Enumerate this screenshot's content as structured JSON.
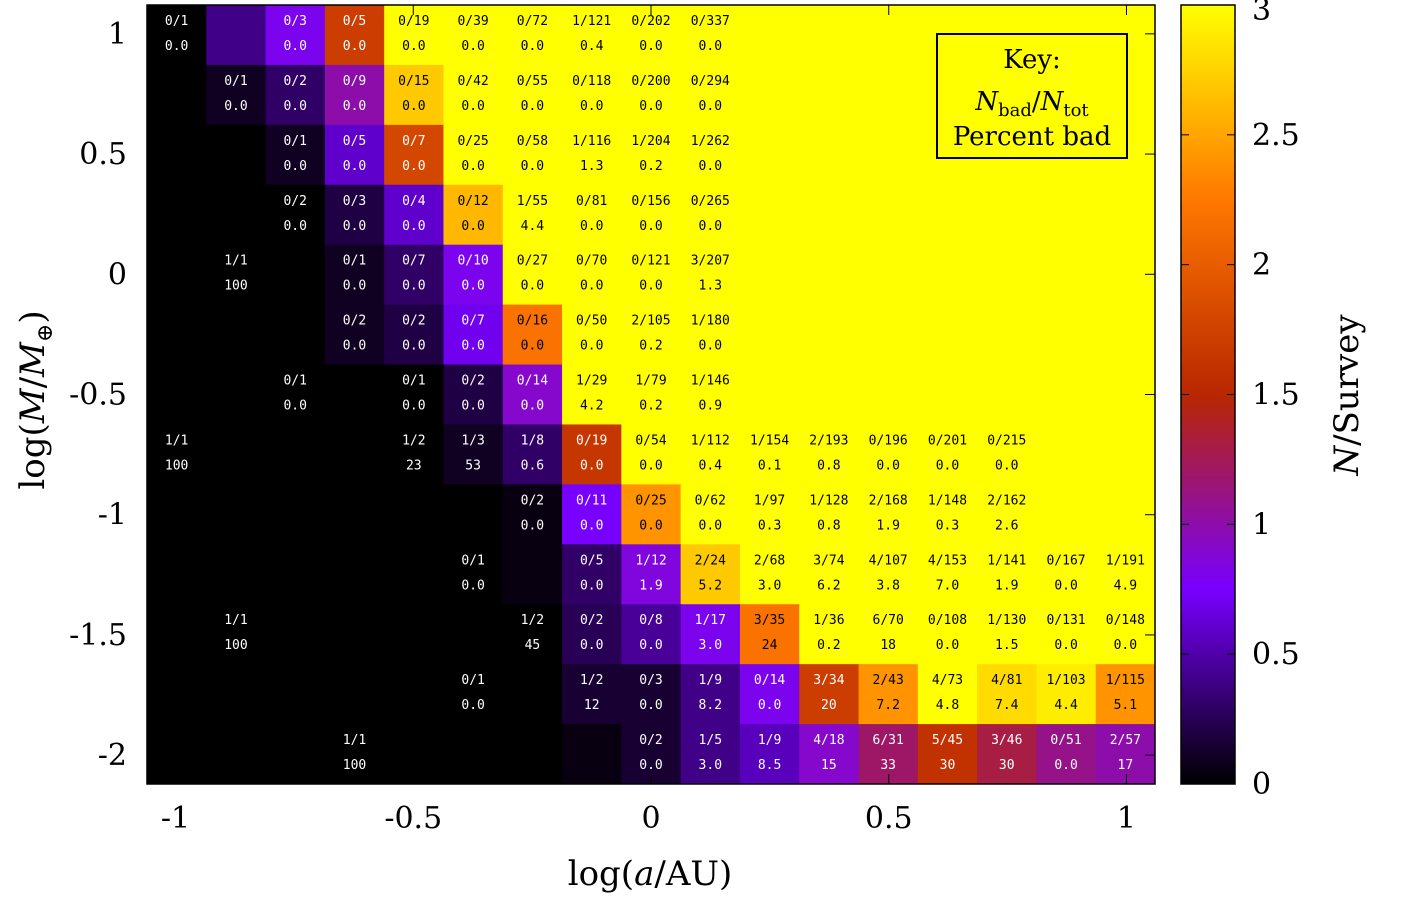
{
  "chart_data": {
    "type": "heatmap",
    "x_title": "log(a/AU)",
    "y_title": "log(M/M⊕)",
    "colorbar_title": "N/Survey",
    "x_range": [
      -1.06,
      1.06
    ],
    "y_range": [
      -2.12,
      1.12
    ],
    "x_ticks": [
      {
        "value": -1,
        "label": "-1"
      },
      {
        "value": -0.5,
        "label": "-0.5"
      },
      {
        "value": 0,
        "label": "0"
      },
      {
        "value": 0.5,
        "label": "0.5"
      },
      {
        "value": 1,
        "label": "1"
      }
    ],
    "y_ticks": [
      {
        "value": 1,
        "label": "1"
      },
      {
        "value": 0.5,
        "label": "0.5"
      },
      {
        "value": 0,
        "label": "0"
      },
      {
        "value": -0.5,
        "label": "-0.5"
      },
      {
        "value": -1,
        "label": "-1"
      },
      {
        "value": -1.5,
        "label": "-1.5"
      },
      {
        "value": -2,
        "label": "-2"
      }
    ],
    "colorbar_range": [
      0,
      3
    ],
    "colorbar_ticks": [
      {
        "value": 0,
        "label": "0"
      },
      {
        "value": 0.5,
        "label": "0.5"
      },
      {
        "value": 1,
        "label": "1"
      },
      {
        "value": 1.5,
        "label": "1.5"
      },
      {
        "value": 2,
        "label": "2"
      },
      {
        "value": 2.5,
        "label": "2.5"
      },
      {
        "value": 3,
        "label": "3"
      }
    ],
    "colormap": [
      "#000000",
      "#7800ff",
      "#b82700",
      "#ff7800",
      "#ffff00"
    ],
    "x_bins": [
      -1.0,
      -0.875,
      -0.75,
      -0.625,
      -0.5,
      -0.375,
      -0.25,
      -0.125,
      0.0,
      0.125,
      0.25,
      0.375,
      0.5,
      0.625,
      0.75,
      0.875,
      1.0
    ],
    "y_bins": [
      1.0,
      0.75,
      0.5,
      0.25,
      0.0,
      -0.25,
      -0.5,
      -0.75,
      -1.0,
      -1.25,
      -1.5,
      -1.75,
      -2.0
    ],
    "default_value": 3,
    "cells": [
      {
        "r": 0,
        "c": 0,
        "v": 0.0,
        "label": "0/1",
        "pct": "0.0"
      },
      {
        "r": 0,
        "c": 1,
        "v": 0.4
      },
      {
        "r": 0,
        "c": 2,
        "v": 0.8,
        "label": "0/3",
        "pct": "0.0"
      },
      {
        "r": 0,
        "c": 3,
        "v": 1.7,
        "label": "0/5",
        "pct": "0.0"
      },
      {
        "r": 0,
        "c": 4,
        "v": 3,
        "label": "0/19",
        "pct": "0.0"
      },
      {
        "r": 0,
        "c": 5,
        "v": 3,
        "label": "0/39",
        "pct": "0.0"
      },
      {
        "r": 0,
        "c": 6,
        "v": 3,
        "label": "0/72",
        "pct": "0.0"
      },
      {
        "r": 0,
        "c": 7,
        "v": 3,
        "label": "1/121",
        "pct": "0.4"
      },
      {
        "r": 0,
        "c": 8,
        "v": 3,
        "label": "0/202",
        "pct": "0.0"
      },
      {
        "r": 0,
        "c": 9,
        "v": 3,
        "label": "0/337",
        "pct": "0.0"
      },
      {
        "r": 1,
        "c": 0,
        "v": 0.0
      },
      {
        "r": 1,
        "c": 1,
        "v": 0.1,
        "label": "0/1",
        "pct": "0.0"
      },
      {
        "r": 1,
        "c": 2,
        "v": 0.3,
        "label": "0/2",
        "pct": "0.0"
      },
      {
        "r": 1,
        "c": 3,
        "v": 1.0,
        "label": "0/9",
        "pct": "0.0"
      },
      {
        "r": 1,
        "c": 4,
        "v": 2.7,
        "label": "0/15",
        "pct": "0.0"
      },
      {
        "r": 1,
        "c": 5,
        "v": 3,
        "label": "0/42",
        "pct": "0.0"
      },
      {
        "r": 1,
        "c": 6,
        "v": 3,
        "label": "0/55",
        "pct": "0.0"
      },
      {
        "r": 1,
        "c": 7,
        "v": 3,
        "label": "0/118",
        "pct": "0.0"
      },
      {
        "r": 1,
        "c": 8,
        "v": 3,
        "label": "0/200",
        "pct": "0.0"
      },
      {
        "r": 1,
        "c": 9,
        "v": 3,
        "label": "0/294",
        "pct": "0.0"
      },
      {
        "r": 2,
        "c": 0,
        "v": 0.0
      },
      {
        "r": 2,
        "c": 1,
        "v": 0.0
      },
      {
        "r": 2,
        "c": 2,
        "v": 0.1,
        "label": "0/1",
        "pct": "0.0"
      },
      {
        "r": 2,
        "c": 3,
        "v": 0.6,
        "label": "0/5",
        "pct": "0.0"
      },
      {
        "r": 2,
        "c": 4,
        "v": 1.8,
        "label": "0/7",
        "pct": "0.0"
      },
      {
        "r": 2,
        "c": 5,
        "v": 3,
        "label": "0/25",
        "pct": "0.0"
      },
      {
        "r": 2,
        "c": 6,
        "v": 3,
        "label": "0/58",
        "pct": "0.0"
      },
      {
        "r": 2,
        "c": 7,
        "v": 3,
        "label": "1/116",
        "pct": "1.3"
      },
      {
        "r": 2,
        "c": 8,
        "v": 3,
        "label": "1/204",
        "pct": "0.2"
      },
      {
        "r": 2,
        "c": 9,
        "v": 3,
        "label": "1/262",
        "pct": "0.0"
      },
      {
        "r": 3,
        "c": 0,
        "v": 0.0
      },
      {
        "r": 3,
        "c": 1,
        "v": 0.0
      },
      {
        "r": 3,
        "c": 2,
        "v": 0.0,
        "label": "0/2",
        "pct": "0.0"
      },
      {
        "r": 3,
        "c": 3,
        "v": 0.2,
        "label": "0/3",
        "pct": "0.0"
      },
      {
        "r": 3,
        "c": 4,
        "v": 0.6,
        "label": "0/4",
        "pct": "0.0"
      },
      {
        "r": 3,
        "c": 5,
        "v": 2.6,
        "label": "0/12",
        "pct": "0.0"
      },
      {
        "r": 3,
        "c": 6,
        "v": 3,
        "label": "1/55",
        "pct": "4.4"
      },
      {
        "r": 3,
        "c": 7,
        "v": 3,
        "label": "0/81",
        "pct": "0.0"
      },
      {
        "r": 3,
        "c": 8,
        "v": 3,
        "label": "0/156",
        "pct": "0.0"
      },
      {
        "r": 3,
        "c": 9,
        "v": 3,
        "label": "0/265",
        "pct": "0.0"
      },
      {
        "r": 4,
        "c": 0,
        "v": 0.0
      },
      {
        "r": 4,
        "c": 1,
        "v": 0.0,
        "label": "1/1",
        "pct": "100"
      },
      {
        "r": 4,
        "c": 2,
        "v": 0.0
      },
      {
        "r": 4,
        "c": 3,
        "v": 0.1,
        "label": "0/1",
        "pct": "0.0"
      },
      {
        "r": 4,
        "c": 4,
        "v": 0.3,
        "label": "0/7",
        "pct": "0.0"
      },
      {
        "r": 4,
        "c": 5,
        "v": 0.8,
        "label": "0/10",
        "pct": "0.0"
      },
      {
        "r": 4,
        "c": 6,
        "v": 3,
        "label": "0/27",
        "pct": "0.0"
      },
      {
        "r": 4,
        "c": 7,
        "v": 3,
        "label": "0/70",
        "pct": "0.0"
      },
      {
        "r": 4,
        "c": 8,
        "v": 3,
        "label": "0/121",
        "pct": "0.0"
      },
      {
        "r": 4,
        "c": 9,
        "v": 3,
        "label": "3/207",
        "pct": "1.3"
      },
      {
        "r": 5,
        "c": 0,
        "v": 0.0
      },
      {
        "r": 5,
        "c": 1,
        "v": 0.0
      },
      {
        "r": 5,
        "c": 2,
        "v": 0.0
      },
      {
        "r": 5,
        "c": 3,
        "v": 0.1,
        "label": "0/2",
        "pct": "0.0"
      },
      {
        "r": 5,
        "c": 4,
        "v": 0.2,
        "label": "0/2",
        "pct": "0.0"
      },
      {
        "r": 5,
        "c": 5,
        "v": 0.7,
        "label": "0/7",
        "pct": "0.0"
      },
      {
        "r": 5,
        "c": 6,
        "v": 2.2,
        "label": "0/16",
        "pct": "0.0"
      },
      {
        "r": 5,
        "c": 7,
        "v": 3,
        "label": "0/50",
        "pct": "0.0"
      },
      {
        "r": 5,
        "c": 8,
        "v": 3,
        "label": "2/105",
        "pct": "0.2"
      },
      {
        "r": 5,
        "c": 9,
        "v": 3,
        "label": "1/180",
        "pct": "0.0"
      },
      {
        "r": 6,
        "c": 0,
        "v": 0.0
      },
      {
        "r": 6,
        "c": 1,
        "v": 0.0
      },
      {
        "r": 6,
        "c": 2,
        "v": 0.0,
        "label": "0/1",
        "pct": "0.0"
      },
      {
        "r": 6,
        "c": 3,
        "v": 0.0
      },
      {
        "r": 6,
        "c": 4,
        "v": 0.0,
        "label": "0/1",
        "pct": "0.0"
      },
      {
        "r": 6,
        "c": 5,
        "v": 0.2,
        "label": "0/2",
        "pct": "0.0"
      },
      {
        "r": 6,
        "c": 6,
        "v": 0.9,
        "label": "0/14",
        "pct": "0.0"
      },
      {
        "r": 6,
        "c": 7,
        "v": 3,
        "label": "1/29",
        "pct": "4.2"
      },
      {
        "r": 6,
        "c": 8,
        "v": 3,
        "label": "1/79",
        "pct": "0.2"
      },
      {
        "r": 6,
        "c": 9,
        "v": 3,
        "label": "1/146",
        "pct": "0.9"
      },
      {
        "r": 7,
        "c": 0,
        "v": 0.0,
        "label": "1/1",
        "pct": "100"
      },
      {
        "r": 7,
        "c": 1,
        "v": 0.0
      },
      {
        "r": 7,
        "c": 2,
        "v": 0.0
      },
      {
        "r": 7,
        "c": 3,
        "v": 0.0
      },
      {
        "r": 7,
        "c": 4,
        "v": 0.0,
        "label": "1/2",
        "pct": "23"
      },
      {
        "r": 7,
        "c": 5,
        "v": 0.1,
        "label": "1/3",
        "pct": "53"
      },
      {
        "r": 7,
        "c": 6,
        "v": 0.3,
        "label": "1/8",
        "pct": "0.6"
      },
      {
        "r": 7,
        "c": 7,
        "v": 1.65,
        "label": "0/19",
        "pct": "0.0"
      },
      {
        "r": 7,
        "c": 8,
        "v": 3,
        "label": "0/54",
        "pct": "0.0"
      },
      {
        "r": 7,
        "c": 9,
        "v": 3,
        "label": "1/112",
        "pct": "0.4"
      },
      {
        "r": 7,
        "c": 10,
        "v": 3,
        "label": "1/154",
        "pct": "0.1"
      },
      {
        "r": 7,
        "c": 11,
        "v": 3,
        "label": "2/193",
        "pct": "0.8"
      },
      {
        "r": 7,
        "c": 12,
        "v": 3,
        "label": "0/196",
        "pct": "0.0"
      },
      {
        "r": 7,
        "c": 13,
        "v": 3,
        "label": "0/201",
        "pct": "0.0"
      },
      {
        "r": 7,
        "c": 14,
        "v": 3,
        "label": "0/215",
        "pct": "0.0"
      },
      {
        "r": 8,
        "c": 0,
        "v": 0.0
      },
      {
        "r": 8,
        "c": 1,
        "v": 0.0
      },
      {
        "r": 8,
        "c": 2,
        "v": 0.0
      },
      {
        "r": 8,
        "c": 3,
        "v": 0.0
      },
      {
        "r": 8,
        "c": 4,
        "v": 0.0
      },
      {
        "r": 8,
        "c": 5,
        "v": 0.0
      },
      {
        "r": 8,
        "c": 6,
        "v": 0.05,
        "label": "0/2",
        "pct": "0.0"
      },
      {
        "r": 8,
        "c": 7,
        "v": 0.75,
        "label": "0/11",
        "pct": "0.0"
      },
      {
        "r": 8,
        "c": 8,
        "v": 2.4,
        "label": "0/25",
        "pct": "0.0"
      },
      {
        "r": 8,
        "c": 9,
        "v": 3,
        "label": "0/62",
        "pct": "0.0"
      },
      {
        "r": 8,
        "c": 10,
        "v": 3,
        "label": "1/97",
        "pct": "0.3"
      },
      {
        "r": 8,
        "c": 11,
        "v": 3,
        "label": "1/128",
        "pct": "0.8"
      },
      {
        "r": 8,
        "c": 12,
        "v": 3,
        "label": "2/168",
        "pct": "1.9"
      },
      {
        "r": 8,
        "c": 13,
        "v": 3,
        "label": "1/148",
        "pct": "0.3"
      },
      {
        "r": 8,
        "c": 14,
        "v": 3,
        "label": "2/162",
        "pct": "2.6"
      },
      {
        "r": 9,
        "c": 0,
        "v": 0.0
      },
      {
        "r": 9,
        "c": 1,
        "v": 0.0
      },
      {
        "r": 9,
        "c": 2,
        "v": 0.0
      },
      {
        "r": 9,
        "c": 3,
        "v": 0.0
      },
      {
        "r": 9,
        "c": 4,
        "v": 0.0
      },
      {
        "r": 9,
        "c": 5,
        "v": 0.0,
        "label": "0/1",
        "pct": "0.0"
      },
      {
        "r": 9,
        "c": 6,
        "v": 0.05
      },
      {
        "r": 9,
        "c": 7,
        "v": 0.3,
        "label": "0/5",
        "pct": "0.0"
      },
      {
        "r": 9,
        "c": 8,
        "v": 0.85,
        "label": "1/12",
        "pct": "1.9"
      },
      {
        "r": 9,
        "c": 9,
        "v": 2.7,
        "label": "2/24",
        "pct": "5.2"
      },
      {
        "r": 9,
        "c": 10,
        "v": 3,
        "label": "2/68",
        "pct": "3.0"
      },
      {
        "r": 9,
        "c": 11,
        "v": 3,
        "label": "3/74",
        "pct": "6.2"
      },
      {
        "r": 9,
        "c": 12,
        "v": 3,
        "label": "4/107",
        "pct": "3.8"
      },
      {
        "r": 9,
        "c": 13,
        "v": 3,
        "label": "4/153",
        "pct": "7.0"
      },
      {
        "r": 9,
        "c": 14,
        "v": 3,
        "label": "1/141",
        "pct": "1.9"
      },
      {
        "r": 9,
        "c": 15,
        "v": 3,
        "label": "0/167",
        "pct": "0.0"
      },
      {
        "r": 9,
        "c": 16,
        "v": 3,
        "label": "1/191",
        "pct": "4.9"
      },
      {
        "r": 10,
        "c": 0,
        "v": 0.0
      },
      {
        "r": 10,
        "c": 1,
        "v": 0.0,
        "label": "1/1",
        "pct": "100"
      },
      {
        "r": 10,
        "c": 2,
        "v": 0.0
      },
      {
        "r": 10,
        "c": 3,
        "v": 0.0
      },
      {
        "r": 10,
        "c": 4,
        "v": 0.0
      },
      {
        "r": 10,
        "c": 5,
        "v": 0.0
      },
      {
        "r": 10,
        "c": 6,
        "v": 0.0,
        "label": "1/2",
        "pct": "45"
      },
      {
        "r": 10,
        "c": 7,
        "v": 0.25,
        "label": "0/2",
        "pct": "0.0"
      },
      {
        "r": 10,
        "c": 8,
        "v": 0.45,
        "label": "0/8",
        "pct": "0.0"
      },
      {
        "r": 10,
        "c": 9,
        "v": 0.8,
        "label": "1/17",
        "pct": "3.0"
      },
      {
        "r": 10,
        "c": 10,
        "v": 2.2,
        "label": "3/35",
        "pct": "24"
      },
      {
        "r": 10,
        "c": 11,
        "v": 3,
        "label": "1/36",
        "pct": "0.2"
      },
      {
        "r": 10,
        "c": 12,
        "v": 3,
        "label": "6/70",
        "pct": "18"
      },
      {
        "r": 10,
        "c": 13,
        "v": 3,
        "label": "0/108",
        "pct": "0.0"
      },
      {
        "r": 10,
        "c": 14,
        "v": 3,
        "label": "1/130",
        "pct": "1.5"
      },
      {
        "r": 10,
        "c": 15,
        "v": 3,
        "label": "0/131",
        "pct": "0.0"
      },
      {
        "r": 10,
        "c": 16,
        "v": 3,
        "label": "0/148",
        "pct": "0.0"
      },
      {
        "r": 11,
        "c": 0,
        "v": 0.0
      },
      {
        "r": 11,
        "c": 1,
        "v": 0.0
      },
      {
        "r": 11,
        "c": 2,
        "v": 0.0
      },
      {
        "r": 11,
        "c": 3,
        "v": 0.0
      },
      {
        "r": 11,
        "c": 4,
        "v": 0.0
      },
      {
        "r": 11,
        "c": 5,
        "v": 0.0,
        "label": "0/1",
        "pct": "0.0"
      },
      {
        "r": 11,
        "c": 6,
        "v": 0.0
      },
      {
        "r": 11,
        "c": 7,
        "v": 0.15,
        "label": "1/2",
        "pct": "12"
      },
      {
        "r": 11,
        "c": 8,
        "v": 0.15,
        "label": "0/3",
        "pct": "0.0"
      },
      {
        "r": 11,
        "c": 9,
        "v": 0.4,
        "label": "1/9",
        "pct": "8.2"
      },
      {
        "r": 11,
        "c": 10,
        "v": 0.8,
        "label": "0/14",
        "pct": "0.0"
      },
      {
        "r": 11,
        "c": 11,
        "v": 1.7,
        "label": "3/34",
        "pct": "20"
      },
      {
        "r": 11,
        "c": 12,
        "v": 2.4,
        "label": "2/43",
        "pct": "7.2"
      },
      {
        "r": 11,
        "c": 13,
        "v": 3,
        "label": "4/73",
        "pct": "4.8"
      },
      {
        "r": 11,
        "c": 14,
        "v": 2.8,
        "label": "4/81",
        "pct": "7.4"
      },
      {
        "r": 11,
        "c": 15,
        "v": 2.9,
        "label": "1/103",
        "pct": "4.4"
      },
      {
        "r": 11,
        "c": 16,
        "v": 2.4,
        "label": "1/115",
        "pct": "5.1"
      },
      {
        "r": 12,
        "c": 0,
        "v": 0.0
      },
      {
        "r": 12,
        "c": 1,
        "v": 0.0
      },
      {
        "r": 12,
        "c": 2,
        "v": 0.0
      },
      {
        "r": 12,
        "c": 3,
        "v": 0.0,
        "label": "1/1",
        "pct": "100"
      },
      {
        "r": 12,
        "c": 4,
        "v": 0.0
      },
      {
        "r": 12,
        "c": 5,
        "v": 0.0
      },
      {
        "r": 12,
        "c": 6,
        "v": 0.0
      },
      {
        "r": 12,
        "c": 7,
        "v": 0.05
      },
      {
        "r": 12,
        "c": 8,
        "v": 0.15,
        "label": "0/2",
        "pct": "0.0"
      },
      {
        "r": 12,
        "c": 9,
        "v": 0.4,
        "label": "1/5",
        "pct": "3.0"
      },
      {
        "r": 12,
        "c": 10,
        "v": 0.55,
        "label": "1/9",
        "pct": "8.5"
      },
      {
        "r": 12,
        "c": 11,
        "v": 0.9,
        "label": "4/18",
        "pct": "15"
      },
      {
        "r": 12,
        "c": 12,
        "v": 1.2,
        "label": "6/31",
        "pct": "33"
      },
      {
        "r": 12,
        "c": 13,
        "v": 1.6,
        "label": "5/45",
        "pct": "30"
      },
      {
        "r": 12,
        "c": 14,
        "v": 1.3,
        "label": "3/46",
        "pct": "30"
      },
      {
        "r": 12,
        "c": 15,
        "v": 1.1,
        "label": "0/51",
        "pct": "0.0"
      },
      {
        "r": 12,
        "c": 16,
        "v": 1.0,
        "label": "2/57",
        "pct": "17"
      }
    ]
  },
  "key": {
    "title": "Key:",
    "line_symbol_n": "N",
    "line_sub_bad": "bad",
    "line_slash": "/",
    "line_sub_tot": "tot",
    "line_percent": "Percent bad"
  }
}
